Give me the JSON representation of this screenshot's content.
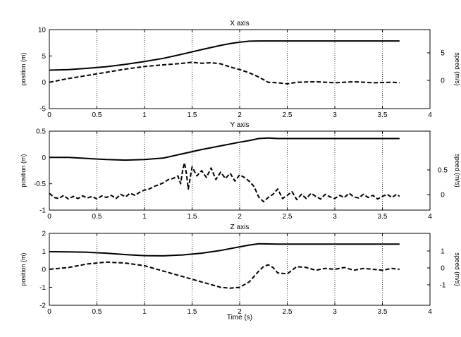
{
  "xlabel": "Time (s)",
  "chart_data": [
    {
      "type": "line",
      "title": "X axis",
      "ylabel_left": "position (m)",
      "ylabel_right": "speed (m/s)",
      "xlim": [
        0,
        4
      ],
      "x_ticks": [
        "0",
        "0.5",
        "1",
        "1.5",
        "2",
        "2.5",
        "3",
        "3.5",
        "4"
      ],
      "ylim_left": [
        -5,
        10
      ],
      "y_ticks_left": [
        "10",
        "5",
        "0",
        "-5"
      ],
      "right_axis_ticks": [
        "5",
        "0"
      ],
      "dotted_vlines": [
        0.5,
        1,
        1.5,
        2,
        2.5,
        3,
        3.5
      ],
      "series": [
        {
          "style": "solid",
          "x": [
            0,
            0.2,
            0.4,
            0.6,
            0.8,
            1.0,
            1.2,
            1.4,
            1.6,
            1.8,
            1.9,
            2.0,
            2.1,
            2.2,
            2.4,
            2.6,
            3.0,
            3.5,
            3.68
          ],
          "y": [
            2.3,
            2.4,
            2.65,
            2.95,
            3.4,
            3.95,
            4.55,
            5.35,
            6.2,
            7.0,
            7.35,
            7.6,
            7.8,
            7.85,
            7.85,
            7.85,
            7.85,
            7.85,
            7.85
          ]
        },
        {
          "style": "dashed",
          "x": [
            0,
            0.2,
            0.4,
            0.6,
            0.8,
            1.0,
            1.2,
            1.4,
            1.5,
            1.6,
            1.7,
            1.8,
            1.9,
            2.0,
            2.1,
            2.2,
            2.3,
            2.4,
            2.5,
            2.6,
            2.8,
            3.0,
            3.2,
            3.4,
            3.6,
            3.68
          ],
          "y": [
            0,
            0.7,
            1.3,
            1.9,
            2.5,
            3.0,
            3.3,
            3.6,
            3.8,
            3.6,
            3.7,
            3.5,
            2.9,
            2.4,
            1.8,
            1.0,
            0.0,
            -0.1,
            -0.3,
            0.0,
            0.1,
            -0.1,
            0.1,
            -0.1,
            0.0,
            -0.1
          ]
        }
      ]
    },
    {
      "type": "line",
      "title": "Y axis",
      "ylabel_left": "position (m)",
      "ylabel_right": "speed (m/s)",
      "xlim": [
        0,
        4
      ],
      "x_ticks": [
        "0",
        "0.5",
        "1",
        "1.5",
        "2",
        "2.5",
        "3",
        "3.5",
        "4"
      ],
      "ylim_left": [
        -1,
        0.5
      ],
      "y_ticks_left": [
        "0.5",
        "0",
        "-0.5",
        "-1"
      ],
      "right_axis_ticks": [
        "0.5",
        "0"
      ],
      "dotted_vlines": [
        0.5,
        1,
        1.5,
        2,
        2.5,
        3,
        3.5
      ],
      "series": [
        {
          "style": "solid",
          "x": [
            0,
            0.2,
            0.4,
            0.6,
            0.8,
            1.0,
            1.2,
            1.4,
            1.6,
            1.8,
            2.0,
            2.1,
            2.2,
            2.3,
            2.4,
            2.5,
            2.6,
            2.8,
            3.0,
            3.5,
            3.68
          ],
          "y": [
            0.0,
            0.0,
            -0.02,
            -0.04,
            -0.05,
            -0.04,
            -0.01,
            0.07,
            0.15,
            0.22,
            0.29,
            0.32,
            0.36,
            0.37,
            0.36,
            0.36,
            0.36,
            0.36,
            0.36,
            0.36,
            0.36
          ]
        },
        {
          "style": "dashed",
          "x": [
            0,
            0.05,
            0.1,
            0.15,
            0.2,
            0.25,
            0.3,
            0.35,
            0.4,
            0.45,
            0.5,
            0.55,
            0.6,
            0.65,
            0.7,
            0.75,
            0.8,
            0.85,
            0.9,
            0.95,
            1.0,
            1.05,
            1.1,
            1.15,
            1.2,
            1.25,
            1.3,
            1.35,
            1.38,
            1.4,
            1.42,
            1.44,
            1.46,
            1.5,
            1.55,
            1.6,
            1.65,
            1.7,
            1.75,
            1.8,
            1.85,
            1.9,
            1.95,
            2.0,
            2.05,
            2.1,
            2.15,
            2.2,
            2.25,
            2.3,
            2.35,
            2.4,
            2.45,
            2.5,
            2.55,
            2.6,
            2.65,
            2.7,
            2.75,
            2.8,
            2.85,
            2.9,
            2.95,
            3.0,
            3.05,
            3.1,
            3.15,
            3.2,
            3.25,
            3.3,
            3.35,
            3.4,
            3.45,
            3.5,
            3.55,
            3.6,
            3.65,
            3.68
          ],
          "y": [
            -0.68,
            -0.76,
            -0.78,
            -0.72,
            -0.79,
            -0.74,
            -0.78,
            -0.73,
            -0.77,
            -0.74,
            -0.79,
            -0.73,
            -0.76,
            -0.72,
            -0.78,
            -0.7,
            -0.75,
            -0.68,
            -0.72,
            -0.66,
            -0.62,
            -0.6,
            -0.55,
            -0.52,
            -0.48,
            -0.42,
            -0.4,
            -0.35,
            -0.5,
            -0.25,
            -0.1,
            -0.3,
            -0.6,
            -0.18,
            -0.35,
            -0.25,
            -0.38,
            -0.2,
            -0.42,
            -0.28,
            -0.4,
            -0.3,
            -0.45,
            -0.33,
            -0.38,
            -0.45,
            -0.55,
            -0.75,
            -0.84,
            -0.76,
            -0.7,
            -0.6,
            -0.78,
            -0.72,
            -0.65,
            -0.8,
            -0.7,
            -0.78,
            -0.68,
            -0.74,
            -0.79,
            -0.7,
            -0.75,
            -0.78,
            -0.72,
            -0.76,
            -0.68,
            -0.75,
            -0.77,
            -0.7,
            -0.76,
            -0.72,
            -0.79,
            -0.74,
            -0.7,
            -0.76,
            -0.7,
            -0.74
          ]
        }
      ]
    },
    {
      "type": "line",
      "title": "Z axis",
      "ylabel_left": "position (m)",
      "ylabel_right": "speed (m/s)",
      "xlim": [
        0,
        4
      ],
      "x_ticks": [
        "0",
        "0.5",
        "1",
        "1.5",
        "2",
        "2.5",
        "3",
        "3.5",
        "4"
      ],
      "ylim_left": [
        -2,
        2
      ],
      "y_ticks_left": [
        "2",
        "1",
        "0",
        "-1",
        "-2"
      ],
      "right_axis_ticks": [
        "1",
        "0",
        "-1"
      ],
      "dotted_vlines": [
        0.5,
        1,
        1.5,
        2,
        2.5,
        3,
        3.5
      ],
      "series": [
        {
          "style": "solid",
          "x": [
            0,
            0.2,
            0.4,
            0.6,
            0.8,
            1.0,
            1.2,
            1.4,
            1.6,
            1.8,
            2.0,
            2.1,
            2.2,
            2.3,
            2.4,
            2.6,
            3.0,
            3.5,
            3.68
          ],
          "y": [
            0.98,
            0.97,
            0.95,
            0.9,
            0.82,
            0.76,
            0.75,
            0.8,
            0.9,
            1.05,
            1.25,
            1.35,
            1.42,
            1.41,
            1.4,
            1.4,
            1.4,
            1.4,
            1.4
          ]
        },
        {
          "style": "dashed",
          "x": [
            0,
            0.2,
            0.4,
            0.6,
            0.8,
            1.0,
            1.2,
            1.4,
            1.6,
            1.8,
            1.9,
            2.0,
            2.1,
            2.2,
            2.25,
            2.3,
            2.35,
            2.4,
            2.5,
            2.6,
            2.7,
            2.8,
            2.9,
            3.0,
            3.1,
            3.2,
            3.3,
            3.4,
            3.5,
            3.6,
            3.68
          ],
          "y": [
            0.0,
            0.1,
            0.3,
            0.4,
            0.35,
            0.2,
            -0.1,
            -0.4,
            -0.7,
            -1.0,
            -1.05,
            -1.0,
            -0.7,
            -0.1,
            0.15,
            0.25,
            0.1,
            -0.2,
            -0.25,
            0.15,
            0.1,
            -0.05,
            0.05,
            0.0,
            0.1,
            -0.05,
            0.05,
            0.0,
            -0.05,
            0.05,
            0.0
          ]
        }
      ]
    }
  ]
}
